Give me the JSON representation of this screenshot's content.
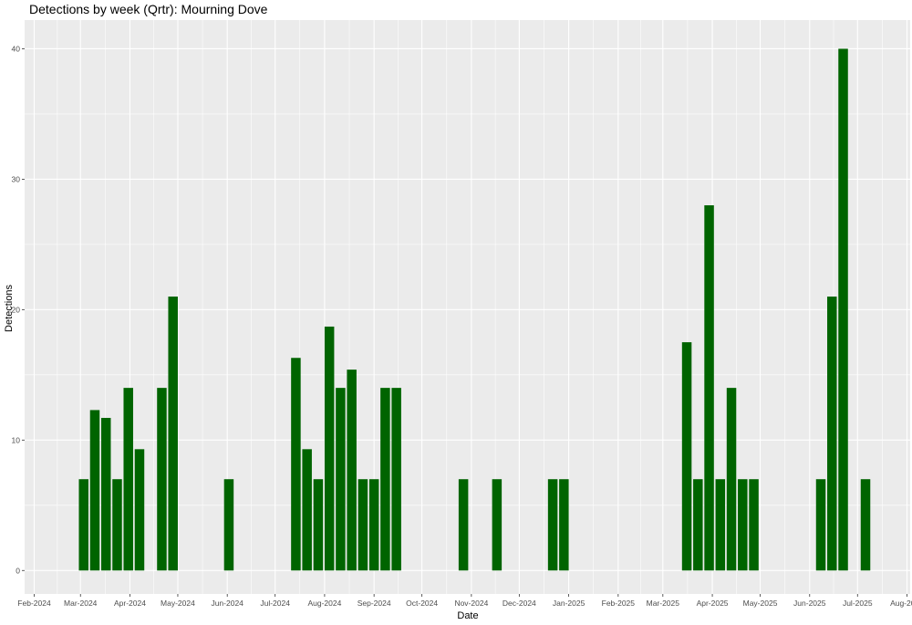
{
  "chart_data": {
    "type": "bar",
    "title": "Detections by week (Qrtr): Mourning Dove",
    "xlabel": "Date",
    "ylabel": "Detections",
    "ylim": [
      -1.8,
      42.2
    ],
    "xlim": [
      "2024-01-26",
      "2025-08-03"
    ],
    "bar_width_days": 6,
    "y_ticks": [
      0,
      10,
      20,
      30,
      40
    ],
    "x_ticks": [
      {
        "date": "2024-02-01",
        "label": "Feb-2024"
      },
      {
        "date": "2024-03-01",
        "label": "Mar-2024"
      },
      {
        "date": "2024-04-01",
        "label": "Apr-2024"
      },
      {
        "date": "2024-05-01",
        "label": "May-2024"
      },
      {
        "date": "2024-06-01",
        "label": "Jun-2024"
      },
      {
        "date": "2024-07-01",
        "label": "Jul-2024"
      },
      {
        "date": "2024-08-01",
        "label": "Aug-2024"
      },
      {
        "date": "2024-09-01",
        "label": "Sep-2024"
      },
      {
        "date": "2024-10-01",
        "label": "Oct-2024"
      },
      {
        "date": "2024-11-01",
        "label": "Nov-2024"
      },
      {
        "date": "2024-12-01",
        "label": "Dec-2024"
      },
      {
        "date": "2025-01-01",
        "label": "Jan-2025"
      },
      {
        "date": "2025-02-01",
        "label": "Feb-2025"
      },
      {
        "date": "2025-03-01",
        "label": "Mar-2025"
      },
      {
        "date": "2025-04-01",
        "label": "Apr-2025"
      },
      {
        "date": "2025-05-01",
        "label": "May-2025"
      },
      {
        "date": "2025-06-01",
        "label": "Jun-2025"
      },
      {
        "date": "2025-07-01",
        "label": "Jul-2025"
      },
      {
        "date": "2025-08-01",
        "label": "Aug-2025"
      }
    ],
    "series": [
      {
        "color": "#006400",
        "points": [
          {
            "x": "2024-03-03",
            "y": 7
          },
          {
            "x": "2024-03-10",
            "y": 12.3
          },
          {
            "x": "2024-03-17",
            "y": 11.7
          },
          {
            "x": "2024-03-24",
            "y": 7
          },
          {
            "x": "2024-03-31",
            "y": 14
          },
          {
            "x": "2024-04-07",
            "y": 9.3
          },
          {
            "x": "2024-04-21",
            "y": 14
          },
          {
            "x": "2024-04-28",
            "y": 21
          },
          {
            "x": "2024-06-02",
            "y": 7
          },
          {
            "x": "2024-07-14",
            "y": 16.3
          },
          {
            "x": "2024-07-21",
            "y": 9.3
          },
          {
            "x": "2024-07-28",
            "y": 7
          },
          {
            "x": "2024-08-04",
            "y": 18.7
          },
          {
            "x": "2024-08-11",
            "y": 14
          },
          {
            "x": "2024-08-18",
            "y": 15.4
          },
          {
            "x": "2024-08-25",
            "y": 7
          },
          {
            "x": "2024-09-01",
            "y": 7
          },
          {
            "x": "2024-09-08",
            "y": 14
          },
          {
            "x": "2024-09-15",
            "y": 14
          },
          {
            "x": "2024-10-27",
            "y": 7
          },
          {
            "x": "2024-11-17",
            "y": 7
          },
          {
            "x": "2024-12-22",
            "y": 7
          },
          {
            "x": "2024-12-29",
            "y": 7
          },
          {
            "x": "2025-03-16",
            "y": 17.5
          },
          {
            "x": "2025-03-23",
            "y": 7
          },
          {
            "x": "2025-03-30",
            "y": 28
          },
          {
            "x": "2025-04-06",
            "y": 7
          },
          {
            "x": "2025-04-13",
            "y": 14
          },
          {
            "x": "2025-04-20",
            "y": 7
          },
          {
            "x": "2025-04-27",
            "y": 7
          },
          {
            "x": "2025-06-08",
            "y": 7
          },
          {
            "x": "2025-06-15",
            "y": 21
          },
          {
            "x": "2025-06-22",
            "y": 40
          },
          {
            "x": "2025-07-06",
            "y": 7
          }
        ]
      }
    ],
    "grid": true,
    "panel_background": "#ebebeb",
    "grid_color": "#ffffff"
  }
}
